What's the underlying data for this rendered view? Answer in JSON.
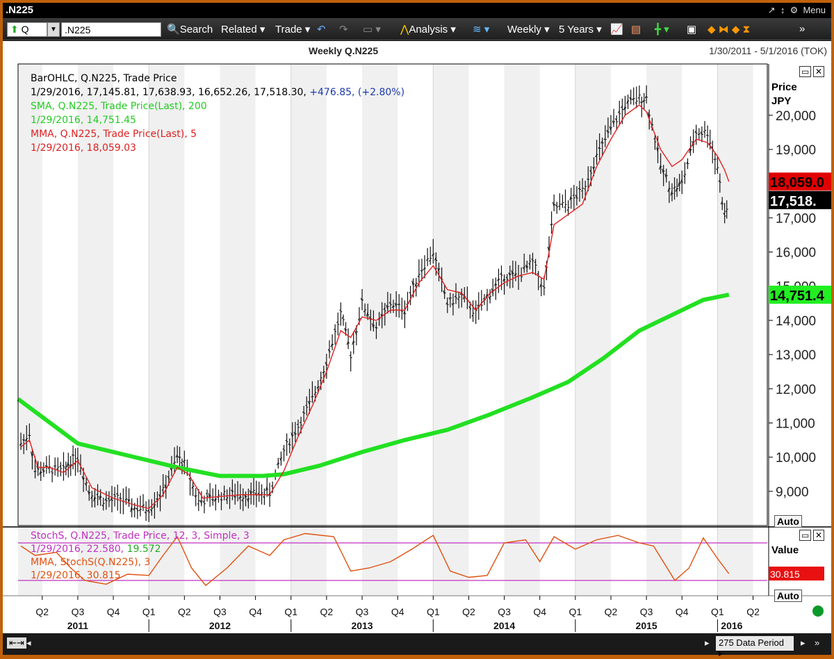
{
  "window": {
    "title": ".N225",
    "menu_label": "Menu"
  },
  "toolbar": {
    "symbol_type": "Q",
    "symbol": ".N225",
    "search_label": "Search",
    "related_label": "Related",
    "trade_label": "Trade",
    "analysis_label": "Analysis",
    "interval": "Weekly",
    "range": "5 Years"
  },
  "chart": {
    "title": "Weekly Q.N225",
    "date_range": "1/30/2011 - 5/1/2016 (TOK)",
    "price_axis_label": "Price",
    "currency": "JPY",
    "value_axis_label": "Value",
    "auto_label": "Auto",
    "legend": {
      "bar_title": "BarOHLC, Q.N225, Trade Price",
      "bar_values": "1/29/2016, 17,145.81, 17,638.93, 16,652.26, 17,518.30,",
      "bar_change": "+476.85, (+2.80%)",
      "sma_title": "SMA, Q.N225, Trade Price(Last),  200",
      "sma_value": "1/29/2016, 14,751.45",
      "mma_title": "MMA, Q.N225, Trade Price(Last),  5",
      "mma_value": "1/29/2016, 18,059.03",
      "stoch_title": "StochS, Q.N225, Trade Price,  12, 3, Simple, 3",
      "stoch_values": "1/29/2016, 22.580,",
      "stoch_d": "19.572",
      "stoch_mma_title": "MMA, StochS(Q.N225),  3",
      "stoch_mma_value": "1/29/2016, 30.815"
    }
  },
  "navigation": {
    "period_label": "275 Data Period"
  },
  "colors": {
    "ohlc": "#000000",
    "sma": "#22e022",
    "mma": "#e02020",
    "stoch": "#e05010",
    "stoch_bands": "#c030c0",
    "band_shade": "#f0f0f0"
  },
  "chart_data": {
    "type": "line",
    "price_panel": {
      "ylim": [
        8000,
        21500
      ],
      "yticks": [
        "9,000",
        "10,000",
        "11,000",
        "12,000",
        "13,000",
        "14,000",
        "15,000",
        "16,000",
        "17,000",
        "18,000",
        "19,000",
        "20,000"
      ],
      "price_tags": [
        {
          "label": "18,059.0",
          "value": 18059.03,
          "color": "#e00000",
          "text_color": "#000000"
        },
        {
          "label": "17,518.",
          "value": 17518.3,
          "color": "#000000",
          "text_color": "#ffffff"
        },
        {
          "label": "14,751.4",
          "value": 14751.45,
          "color": "#22ee22",
          "text_color": "#000000"
        }
      ],
      "close_series": [
        {
          "x": 2011.1,
          "y": 10400
        },
        {
          "x": 2011.16,
          "y": 10700
        },
        {
          "x": 2011.2,
          "y": 9600
        },
        {
          "x": 2011.3,
          "y": 9650
        },
        {
          "x": 2011.4,
          "y": 9600
        },
        {
          "x": 2011.45,
          "y": 9900
        },
        {
          "x": 2011.5,
          "y": 10000
        },
        {
          "x": 2011.58,
          "y": 9000
        },
        {
          "x": 2011.7,
          "y": 8700
        },
        {
          "x": 2011.8,
          "y": 8800
        },
        {
          "x": 2011.9,
          "y": 8500
        },
        {
          "x": 2012.0,
          "y": 8500
        },
        {
          "x": 2012.1,
          "y": 9000
        },
        {
          "x": 2012.2,
          "y": 10000
        },
        {
          "x": 2012.25,
          "y": 9800
        },
        {
          "x": 2012.35,
          "y": 8700
        },
        {
          "x": 2012.45,
          "y": 8800
        },
        {
          "x": 2012.55,
          "y": 8900
        },
        {
          "x": 2012.7,
          "y": 8900
        },
        {
          "x": 2012.85,
          "y": 8950
        },
        {
          "x": 2012.95,
          "y": 10200
        },
        {
          "x": 2013.05,
          "y": 10900
        },
        {
          "x": 2013.15,
          "y": 11700
        },
        {
          "x": 2013.25,
          "y": 12800
        },
        {
          "x": 2013.35,
          "y": 14200
        },
        {
          "x": 2013.42,
          "y": 13000
        },
        {
          "x": 2013.5,
          "y": 14500
        },
        {
          "x": 2013.6,
          "y": 13800
        },
        {
          "x": 2013.7,
          "y": 14500
        },
        {
          "x": 2013.8,
          "y": 14300
        },
        {
          "x": 2013.9,
          "y": 15400
        },
        {
          "x": 2014.0,
          "y": 16000
        },
        {
          "x": 2014.1,
          "y": 14500
        },
        {
          "x": 2014.2,
          "y": 14700
        },
        {
          "x": 2014.3,
          "y": 14200
        },
        {
          "x": 2014.4,
          "y": 14800
        },
        {
          "x": 2014.5,
          "y": 15300
        },
        {
          "x": 2014.6,
          "y": 15300
        },
        {
          "x": 2014.7,
          "y": 15700
        },
        {
          "x": 2014.78,
          "y": 14900
        },
        {
          "x": 2014.85,
          "y": 17300
        },
        {
          "x": 2014.95,
          "y": 17400
        },
        {
          "x": 2015.05,
          "y": 17800
        },
        {
          "x": 2015.15,
          "y": 18800
        },
        {
          "x": 2015.25,
          "y": 19600
        },
        {
          "x": 2015.35,
          "y": 20300
        },
        {
          "x": 2015.45,
          "y": 20500
        },
        {
          "x": 2015.5,
          "y": 20500
        },
        {
          "x": 2015.6,
          "y": 18500
        },
        {
          "x": 2015.68,
          "y": 17800
        },
        {
          "x": 2015.75,
          "y": 18000
        },
        {
          "x": 2015.85,
          "y": 19500
        },
        {
          "x": 2015.93,
          "y": 19500
        },
        {
          "x": 2016.0,
          "y": 18500
        },
        {
          "x": 2016.05,
          "y": 17000
        },
        {
          "x": 2016.08,
          "y": 17518
        }
      ],
      "mma_series": [
        {
          "x": 2011.1,
          "y": 10300
        },
        {
          "x": 2011.16,
          "y": 10500
        },
        {
          "x": 2011.22,
          "y": 9700
        },
        {
          "x": 2011.3,
          "y": 9700
        },
        {
          "x": 2011.4,
          "y": 9550
        },
        {
          "x": 2011.5,
          "y": 9900
        },
        {
          "x": 2011.6,
          "y": 9100
        },
        {
          "x": 2011.75,
          "y": 8800
        },
        {
          "x": 2011.9,
          "y": 8600
        },
        {
          "x": 2012.0,
          "y": 8500
        },
        {
          "x": 2012.1,
          "y": 8900
        },
        {
          "x": 2012.2,
          "y": 9700
        },
        {
          "x": 2012.28,
          "y": 9500
        },
        {
          "x": 2012.38,
          "y": 8800
        },
        {
          "x": 2012.5,
          "y": 8850
        },
        {
          "x": 2012.65,
          "y": 8900
        },
        {
          "x": 2012.85,
          "y": 8900
        },
        {
          "x": 2012.95,
          "y": 9600
        },
        {
          "x": 2013.05,
          "y": 10600
        },
        {
          "x": 2013.15,
          "y": 11500
        },
        {
          "x": 2013.25,
          "y": 12500
        },
        {
          "x": 2013.35,
          "y": 13700
        },
        {
          "x": 2013.42,
          "y": 13500
        },
        {
          "x": 2013.5,
          "y": 14100
        },
        {
          "x": 2013.6,
          "y": 14000
        },
        {
          "x": 2013.7,
          "y": 14300
        },
        {
          "x": 2013.8,
          "y": 14300
        },
        {
          "x": 2013.9,
          "y": 15100
        },
        {
          "x": 2014.0,
          "y": 15600
        },
        {
          "x": 2014.1,
          "y": 14900
        },
        {
          "x": 2014.2,
          "y": 14800
        },
        {
          "x": 2014.3,
          "y": 14300
        },
        {
          "x": 2014.4,
          "y": 14800
        },
        {
          "x": 2014.5,
          "y": 15100
        },
        {
          "x": 2014.6,
          "y": 15300
        },
        {
          "x": 2014.7,
          "y": 15400
        },
        {
          "x": 2014.78,
          "y": 15200
        },
        {
          "x": 2014.85,
          "y": 16800
        },
        {
          "x": 2014.95,
          "y": 17100
        },
        {
          "x": 2015.05,
          "y": 17400
        },
        {
          "x": 2015.15,
          "y": 18500
        },
        {
          "x": 2015.25,
          "y": 19300
        },
        {
          "x": 2015.35,
          "y": 20000
        },
        {
          "x": 2015.45,
          "y": 20300
        },
        {
          "x": 2015.5,
          "y": 20100
        },
        {
          "x": 2015.6,
          "y": 19000
        },
        {
          "x": 2015.68,
          "y": 18500
        },
        {
          "x": 2015.75,
          "y": 18700
        },
        {
          "x": 2015.85,
          "y": 19300
        },
        {
          "x": 2015.93,
          "y": 19200
        },
        {
          "x": 2016.0,
          "y": 18800
        },
        {
          "x": 2016.05,
          "y": 18400
        },
        {
          "x": 2016.08,
          "y": 18059
        }
      ],
      "sma_series": [
        {
          "x": 2011.08,
          "y": 11700
        },
        {
          "x": 2011.5,
          "y": 10400
        },
        {
          "x": 2011.9,
          "y": 10000
        },
        {
          "x": 2012.2,
          "y": 9700
        },
        {
          "x": 2012.5,
          "y": 9450
        },
        {
          "x": 2012.8,
          "y": 9450
        },
        {
          "x": 2012.95,
          "y": 9500
        },
        {
          "x": 2013.2,
          "y": 9750
        },
        {
          "x": 2013.5,
          "y": 10150
        },
        {
          "x": 2013.8,
          "y": 10500
        },
        {
          "x": 2014.1,
          "y": 10800
        },
        {
          "x": 2014.4,
          "y": 11250
        },
        {
          "x": 2014.7,
          "y": 11750
        },
        {
          "x": 2014.95,
          "y": 12200
        },
        {
          "x": 2015.2,
          "y": 12900
        },
        {
          "x": 2015.45,
          "y": 13700
        },
        {
          "x": 2015.7,
          "y": 14200
        },
        {
          "x": 2015.9,
          "y": 14600
        },
        {
          "x": 2016.08,
          "y": 14751
        }
      ]
    },
    "stoch_panel": {
      "ylim": [
        0,
        100
      ],
      "bands": [
        20,
        80
      ],
      "value_tag": "30.815",
      "series": [
        {
          "x": 2011.1,
          "y": 75
        },
        {
          "x": 2011.2,
          "y": 60
        },
        {
          "x": 2011.35,
          "y": 65
        },
        {
          "x": 2011.45,
          "y": 40
        },
        {
          "x": 2011.55,
          "y": 20
        },
        {
          "x": 2011.7,
          "y": 14
        },
        {
          "x": 2011.85,
          "y": 30
        },
        {
          "x": 2012.0,
          "y": 28
        },
        {
          "x": 2012.1,
          "y": 60
        },
        {
          "x": 2012.2,
          "y": 90
        },
        {
          "x": 2012.3,
          "y": 40
        },
        {
          "x": 2012.4,
          "y": 12
        },
        {
          "x": 2012.55,
          "y": 40
        },
        {
          "x": 2012.7,
          "y": 75
        },
        {
          "x": 2012.85,
          "y": 60
        },
        {
          "x": 2012.95,
          "y": 85
        },
        {
          "x": 2013.1,
          "y": 95
        },
        {
          "x": 2013.3,
          "y": 90
        },
        {
          "x": 2013.42,
          "y": 35
        },
        {
          "x": 2013.55,
          "y": 40
        },
        {
          "x": 2013.7,
          "y": 50
        },
        {
          "x": 2013.85,
          "y": 70
        },
        {
          "x": 2014.0,
          "y": 92
        },
        {
          "x": 2014.12,
          "y": 35
        },
        {
          "x": 2014.25,
          "y": 25
        },
        {
          "x": 2014.38,
          "y": 28
        },
        {
          "x": 2014.5,
          "y": 80
        },
        {
          "x": 2014.65,
          "y": 85
        },
        {
          "x": 2014.75,
          "y": 50
        },
        {
          "x": 2014.85,
          "y": 90
        },
        {
          "x": 2015.0,
          "y": 70
        },
        {
          "x": 2015.15,
          "y": 85
        },
        {
          "x": 2015.3,
          "y": 92
        },
        {
          "x": 2015.45,
          "y": 80
        },
        {
          "x": 2015.55,
          "y": 75
        },
        {
          "x": 2015.7,
          "y": 20
        },
        {
          "x": 2015.8,
          "y": 40
        },
        {
          "x": 2015.9,
          "y": 88
        },
        {
          "x": 2016.0,
          "y": 55
        },
        {
          "x": 2016.08,
          "y": 30.8
        }
      ]
    },
    "x_quarters": [
      "Q2",
      "Q3",
      "Q4",
      "Q1",
      "Q2",
      "Q3",
      "Q4",
      "Q1",
      "Q2",
      "Q3",
      "Q4",
      "Q1",
      "Q2",
      "Q3",
      "Q4",
      "Q1",
      "Q2",
      "Q3",
      "Q4",
      "Q1",
      "Q2"
    ],
    "x_years": [
      "2011",
      "2012",
      "2013",
      "2014",
      "2015",
      "2016"
    ]
  }
}
